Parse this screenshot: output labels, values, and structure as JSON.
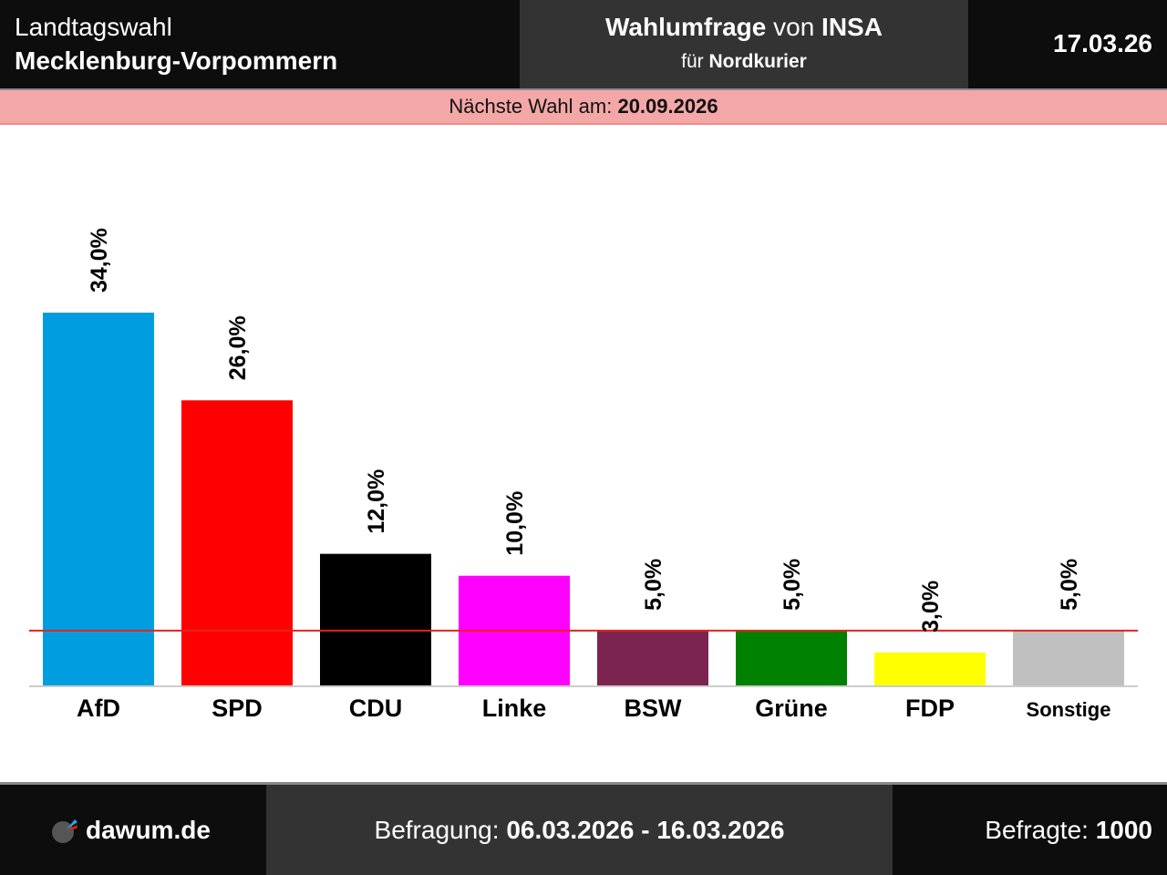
{
  "header": {
    "election_type": "Landtagswahl",
    "region": "Mecklenburg-Vorpommern",
    "poll_title_bold": "Wahlumfrage",
    "poll_title_mid": " von ",
    "institute": "INSA",
    "client_prefix": "für ",
    "client": "Nordkurier",
    "date": "17.03.26"
  },
  "next_election": {
    "label": "Nächste Wahl am: ",
    "date": "20.09.2026"
  },
  "footer": {
    "logo_text": "dawum.de",
    "survey_label": "Befragung: ",
    "survey_period": "06.03.2026 - 16.03.2026",
    "respondents_label": "Befragte: ",
    "respondents": "1000"
  },
  "colors": {
    "threshold_line": "#e8211d",
    "baseline": "#cccccc"
  },
  "chart_data": {
    "type": "bar",
    "title": "Wahlumfrage von INSA",
    "xlabel": "",
    "ylabel": "",
    "ylim": [
      0,
      34
    ],
    "grid": false,
    "threshold": 5,
    "categories": [
      "AfD",
      "SPD",
      "CDU",
      "Linke",
      "BSW",
      "Grüne",
      "FDP",
      "Sonstige"
    ],
    "values": [
      34.0,
      26.0,
      12.0,
      10.0,
      5.0,
      5.0,
      3.0,
      5.0
    ],
    "labels": [
      "34,0%",
      "26,0%",
      "12,0%",
      "10,0%",
      "5,0%",
      "5,0%",
      "3,0%",
      "5,0%"
    ],
    "colors": [
      "#009ee0",
      "#ff0000",
      "#000000",
      "#ff00ff",
      "#7b2450",
      "#008000",
      "#ffff00",
      "#c0c0c0"
    ]
  }
}
